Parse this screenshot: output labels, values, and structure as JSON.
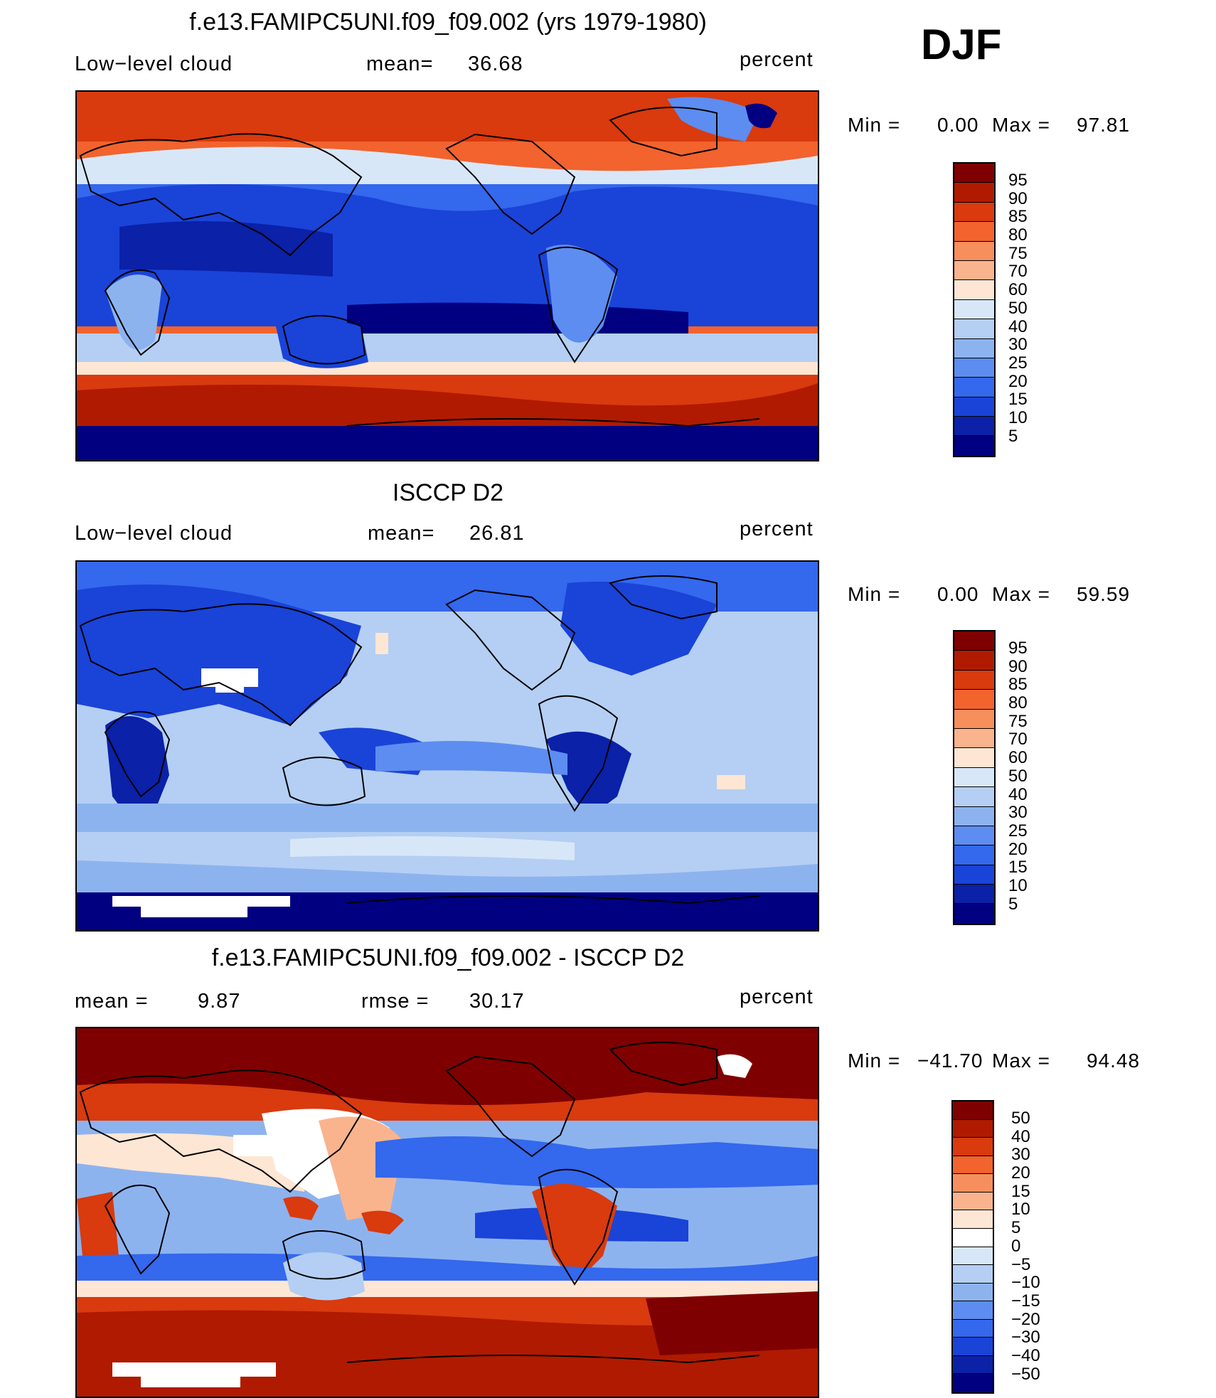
{
  "season": "DJF",
  "units_label": "percent",
  "colors": {
    "abs_scale": [
      "#7f0000",
      "#b01a00",
      "#d93a0e",
      "#f2632e",
      "#f78f5c",
      "#f9b48e",
      "#fde6d4",
      "#d8e7f7",
      "#b4cff3",
      "#8db3ef",
      "#5d8df0",
      "#3468ed",
      "#1a43d8",
      "#0a21a8",
      "#000080"
    ],
    "diff_scale": [
      "#7f0000",
      "#b01a00",
      "#d93a0e",
      "#f2632e",
      "#f78f5c",
      "#f9b48e",
      "#fde6d4",
      "#ffffff",
      "#d8e7f7",
      "#b4cff3",
      "#8db3ef",
      "#5d8df0",
      "#3468ed",
      "#1a43d8",
      "#0a21a8",
      "#000080"
    ]
  },
  "panels": [
    {
      "title": "f.e13.FAMIPC5UNI.f09_f09.002 (yrs 1979-1980)",
      "left_label": "Low−level cloud",
      "stat_label": "mean=",
      "stat_value": "36.68",
      "units": "percent",
      "min_label": "Min =",
      "min_value": "0.00",
      "max_label": "Max =",
      "max_value": "97.81",
      "colorbar_labels": [
        "95",
        "90",
        "85",
        "80",
        "75",
        "70",
        "60",
        "50",
        "40",
        "30",
        "25",
        "20",
        "15",
        "10",
        "5"
      ]
    },
    {
      "title": "ISCCP D2",
      "left_label": "Low−level cloud",
      "stat_label": "mean=",
      "stat_value": "26.81",
      "units": "percent",
      "min_label": "Min =",
      "min_value": "0.00",
      "max_label": "Max =",
      "max_value": "59.59",
      "colorbar_labels": [
        "95",
        "90",
        "85",
        "80",
        "75",
        "70",
        "60",
        "50",
        "40",
        "30",
        "25",
        "20",
        "15",
        "10",
        "5"
      ]
    },
    {
      "title": "f.e13.FAMIPC5UNI.f09_f09.002 - ISCCP D2",
      "left_label": "mean =",
      "left_value": "9.87",
      "stat_label": "rmse =",
      "stat_value": "30.17",
      "units": "percent",
      "min_label": "Min =",
      "min_value": "−41.70",
      "max_label": "Max =",
      "max_value": "94.48",
      "colorbar_labels": [
        "50",
        "40",
        "30",
        "20",
        "15",
        "10",
        "5",
        "0",
        "−5",
        "−10",
        "−15",
        "−20",
        "−30",
        "−40",
        "−50"
      ]
    }
  ]
}
